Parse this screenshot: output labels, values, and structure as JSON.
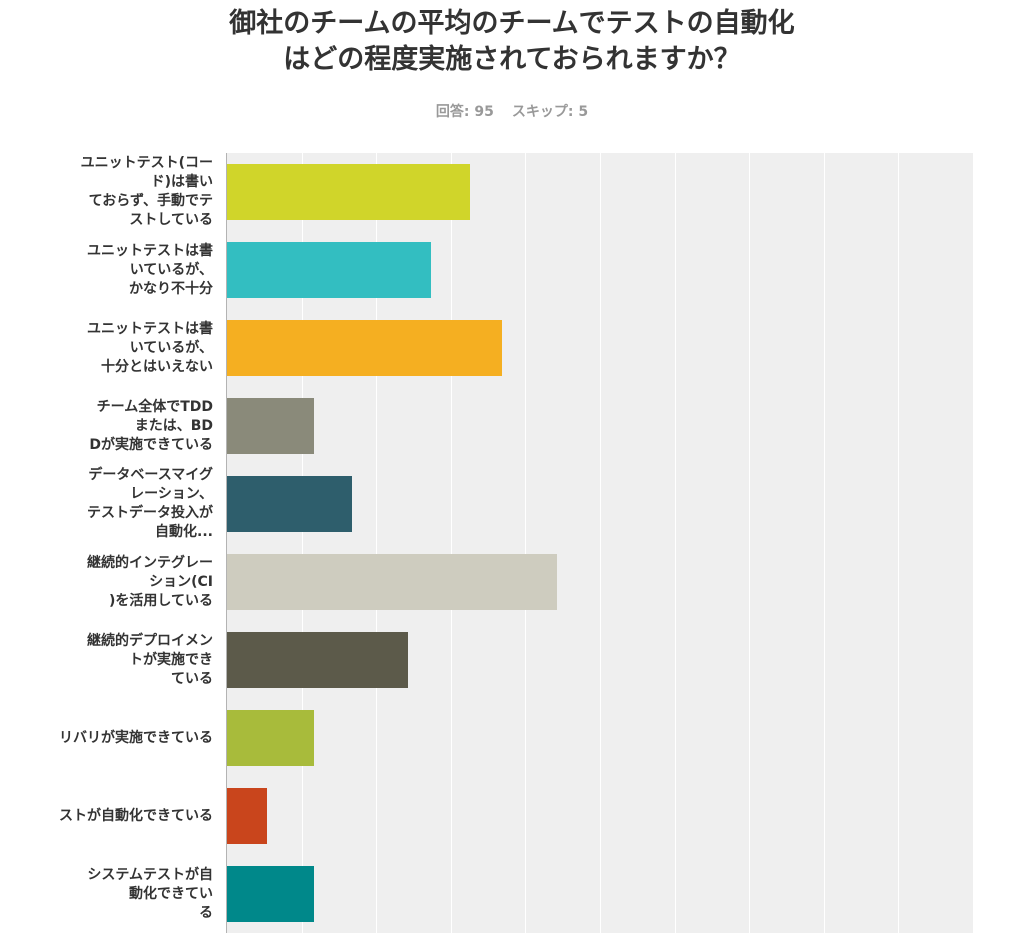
{
  "chart_data": {
    "type": "bar",
    "orientation": "horizontal",
    "title_lines": [
      "御社のチームの平均のチームでテストの自動化",
      "はどの程度実施されておられますか？"
    ],
    "responses_label": "回答: 95",
    "skipped_label": "スキップ: 5",
    "categories": [
      "ユニットテスト(コード)は書いておらず、手動でテストしている",
      "ユニットテストは書いているが、かなり不十分",
      "ユニットテストは書いているが、十分とはいえない",
      "チーム全体でTDDまたは、BDDが実施できている",
      "データベースマイグレーション、テストデータ投入が自動化...",
      "継続的インテグレーション(CI)を活用している",
      "継続的デプロイメントが実施できている",
      "リバリが実施できている",
      "ストが自動化できている",
      "システムテストが自動化できている"
    ],
    "display_labels": [
      "ユニットテスト(コー\nド)は書い\nておらず、手動でテ\nストしている",
      "ユニットテストは書\nいているが、\nかなり不十分",
      "ユニットテストは書\nいているが、\n十分とはいえない",
      "チーム全体でTDD\nまたは、BD\nDが実施できている",
      "データベースマイグ\nレーション、\nテストデータ投入が\n自動化...",
      "継続的インテグレー\nション(CI\n)を活用している",
      "継続的デプロイメン\nトが実施でき\nている",
      "リバリが実施できている",
      "ストが自動化できている",
      "システムテストが自\n動化できてい\nる"
    ],
    "values": [
      32.6,
      27.4,
      36.8,
      11.6,
      16.8,
      44.2,
      24.2,
      11.6,
      5.3,
      11.6
    ],
    "colors": [
      "#d0d52a",
      "#33bec1",
      "#f5af21",
      "#8a8a7a",
      "#2e5e6c",
      "#ceccbf",
      "#5c5a4a",
      "#a8bb3b",
      "#c9451c",
      "#00888a"
    ],
    "xlim": [
      0,
      100
    ],
    "grid": true,
    "legend": "none"
  }
}
